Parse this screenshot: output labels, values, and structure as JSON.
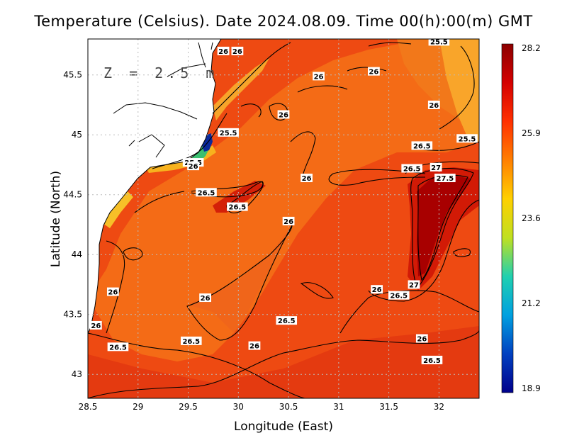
{
  "title": "Temperature (Celsius). Date 2024.08.09. Time 00(h):00(m) GMT",
  "depth_label": "Z = 2.5 m",
  "axes": {
    "xlabel": "Longitude (East)",
    "ylabel": "Latitude (North)",
    "xlim": [
      28.5,
      32.4
    ],
    "ylim": [
      42.8,
      45.8
    ],
    "xticks": [
      "28.5",
      "29",
      "29.5",
      "30",
      "30.5",
      "31",
      "31.5",
      "32"
    ],
    "yticks": [
      "43",
      "43.5",
      "44",
      "44.5",
      "45",
      "45.5"
    ],
    "grid": true
  },
  "colorbar": {
    "min": 18.9,
    "max": 28.2,
    "tick_labels": [
      "28.2",
      "25.9",
      "23.6",
      "21.2",
      "18.9"
    ],
    "colors": [
      "#8b0000",
      "#d40000",
      "#ff3000",
      "#ff7f00",
      "#ffd000",
      "#c0e020",
      "#20d0b0",
      "#00a0e0",
      "#0040c0",
      "#00008b"
    ]
  },
  "chart_data": {
    "type": "heatmap",
    "variable": "Temperature (Celsius)",
    "date": "2024.08.09",
    "time": "00(h):00(m) GMT",
    "depth": "Z = 2.5 m",
    "contour_labels": [
      {
        "text": "26",
        "lon": 29.85,
        "lat": 45.7
      },
      {
        "text": "26",
        "lon": 29.99,
        "lat": 45.7
      },
      {
        "text": "25.5",
        "lon": 32.0,
        "lat": 45.78
      },
      {
        "text": "26",
        "lon": 30.8,
        "lat": 45.49
      },
      {
        "text": "26",
        "lon": 31.35,
        "lat": 45.53
      },
      {
        "text": "26",
        "lon": 31.95,
        "lat": 45.25
      },
      {
        "text": "26",
        "lon": 30.45,
        "lat": 45.17
      },
      {
        "text": "25.5",
        "lon": 29.9,
        "lat": 45.02
      },
      {
        "text": "25.5",
        "lon": 32.28,
        "lat": 44.97
      },
      {
        "text": "26.5",
        "lon": 31.83,
        "lat": 44.91
      },
      {
        "text": "26.5",
        "lon": 31.73,
        "lat": 44.72
      },
      {
        "text": "27",
        "lon": 31.97,
        "lat": 44.73
      },
      {
        "text": "27.5",
        "lon": 32.06,
        "lat": 44.64
      },
      {
        "text": "25.5",
        "lon": 29.55,
        "lat": 44.77
      },
      {
        "text": "26",
        "lon": 29.55,
        "lat": 44.74
      },
      {
        "text": "26",
        "lon": 30.68,
        "lat": 44.64
      },
      {
        "text": "26.5",
        "lon": 29.68,
        "lat": 44.52
      },
      {
        "text": "26.5",
        "lon": 29.99,
        "lat": 44.4
      },
      {
        "text": "26",
        "lon": 30.5,
        "lat": 44.28
      },
      {
        "text": "26",
        "lon": 31.38,
        "lat": 43.71
      },
      {
        "text": "27",
        "lon": 31.75,
        "lat": 43.75
      },
      {
        "text": "26.5",
        "lon": 31.6,
        "lat": 43.66
      },
      {
        "text": "26",
        "lon": 28.75,
        "lat": 43.69
      },
      {
        "text": "26",
        "lon": 29.67,
        "lat": 43.64
      },
      {
        "text": "26.5",
        "lon": 30.48,
        "lat": 43.45
      },
      {
        "text": "26",
        "lon": 28.58,
        "lat": 43.41
      },
      {
        "text": "26",
        "lon": 31.83,
        "lat": 43.3
      },
      {
        "text": "26.5",
        "lon": 29.53,
        "lat": 43.28
      },
      {
        "text": "26",
        "lon": 30.16,
        "lat": 43.24
      },
      {
        "text": "26.5",
        "lon": 28.8,
        "lat": 43.23
      },
      {
        "text": "26.5",
        "lon": 31.93,
        "lat": 43.12
      }
    ]
  }
}
